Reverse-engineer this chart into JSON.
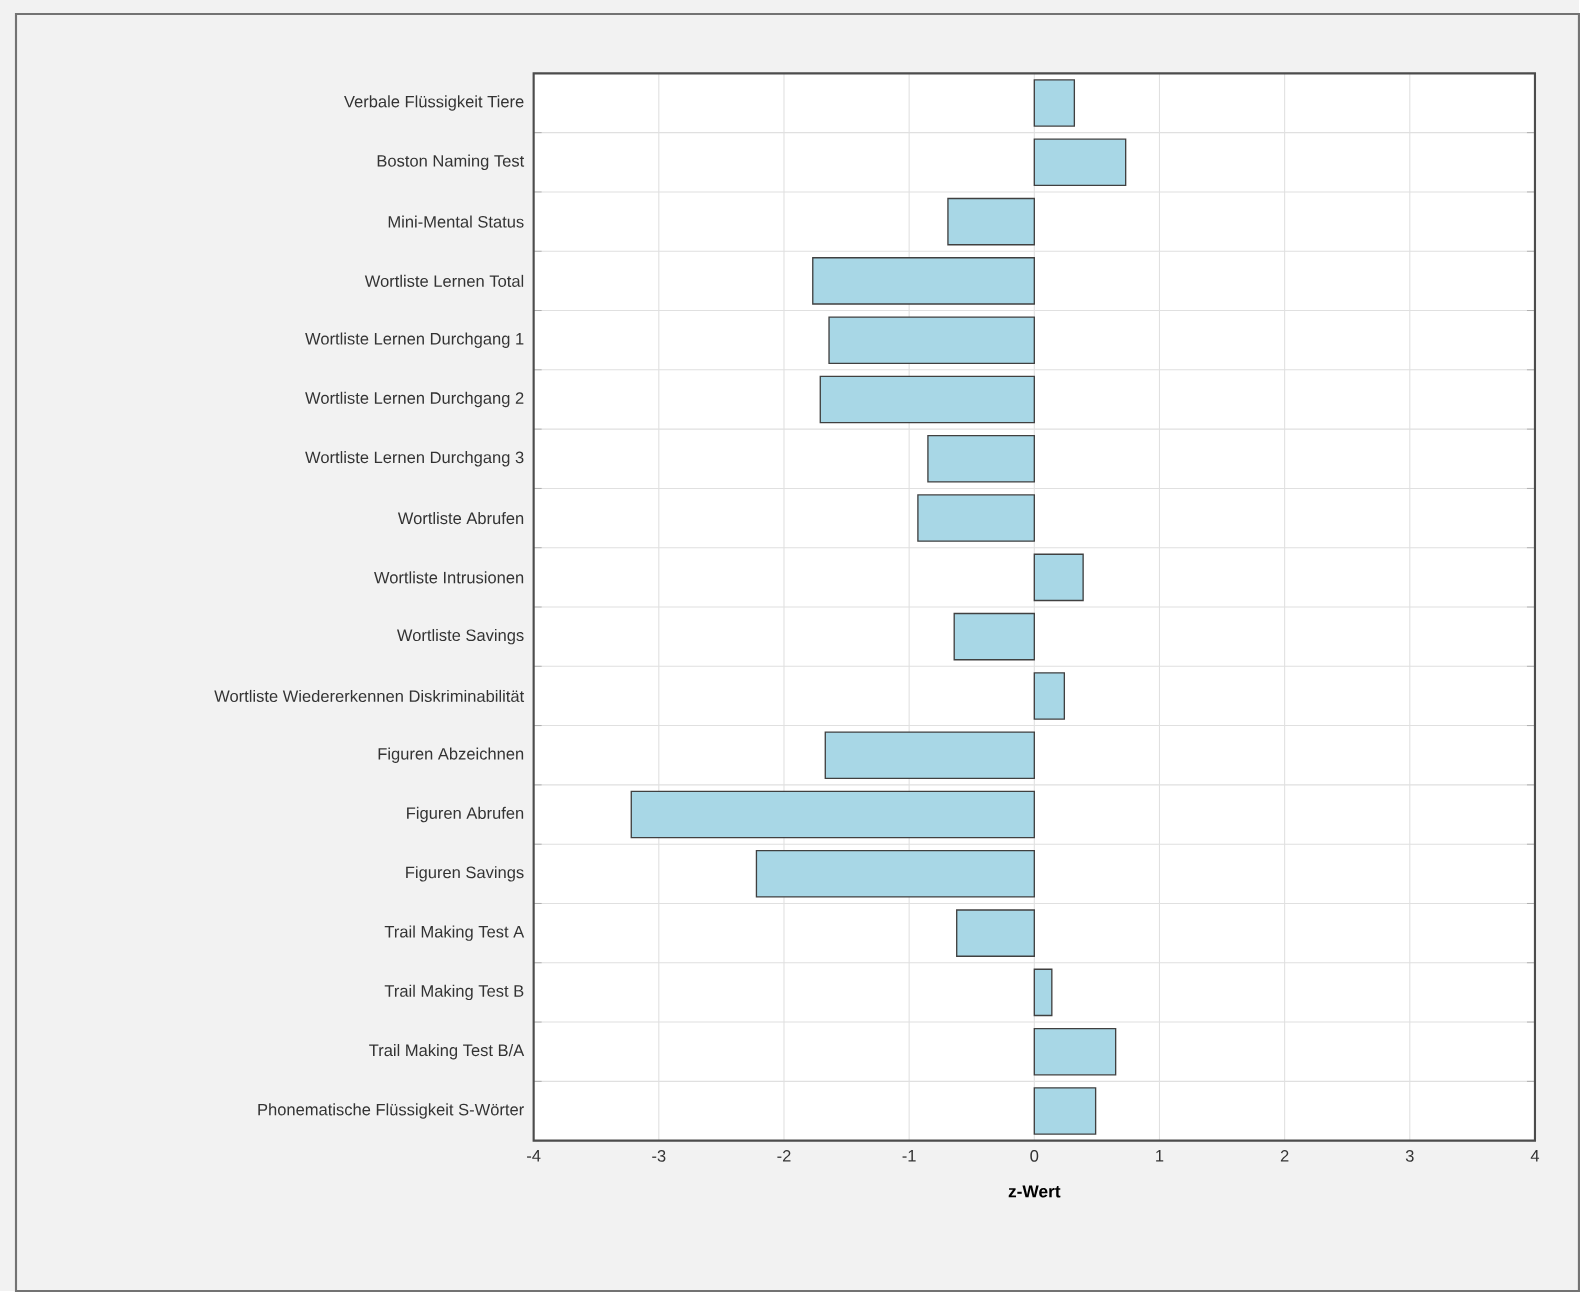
{
  "chart_data": {
    "type": "bar",
    "orientation": "horizontal",
    "xlabel": "z-Wert",
    "categories": [
      "Verbale Flüssigkeit Tiere",
      "Boston Naming Test",
      "Mini-Mental Status",
      "Wortliste Lernen Total",
      "Wortliste Lernen Durchgang 1",
      "Wortliste Lernen Durchgang 2",
      "Wortliste Lernen Durchgang 3",
      "Wortliste Abrufen",
      "Wortliste Intrusionen",
      "Wortliste Savings",
      "Wortliste Wiedererkennen Diskriminabilität",
      "Figuren Abzeichnen",
      "Figuren Abrufen",
      "Figuren Savings",
      "Trail Making Test A",
      "Trail Making Test B",
      "Trail Making Test B/A",
      "Phonematische Flüssigkeit S-Wörter"
    ],
    "values": [
      0.32,
      0.73,
      -0.69,
      -1.77,
      -1.64,
      -1.71,
      -0.85,
      -0.93,
      0.39,
      -0.64,
      0.24,
      -1.67,
      -3.22,
      -2.22,
      -0.62,
      0.14,
      0.65,
      0.49
    ],
    "color": "#a8d7e6",
    "xlim": [
      -4,
      4
    ],
    "xticks": [
      -4,
      -3,
      -2,
      -1,
      0,
      1,
      2,
      3,
      4
    ],
    "grid": true
  }
}
